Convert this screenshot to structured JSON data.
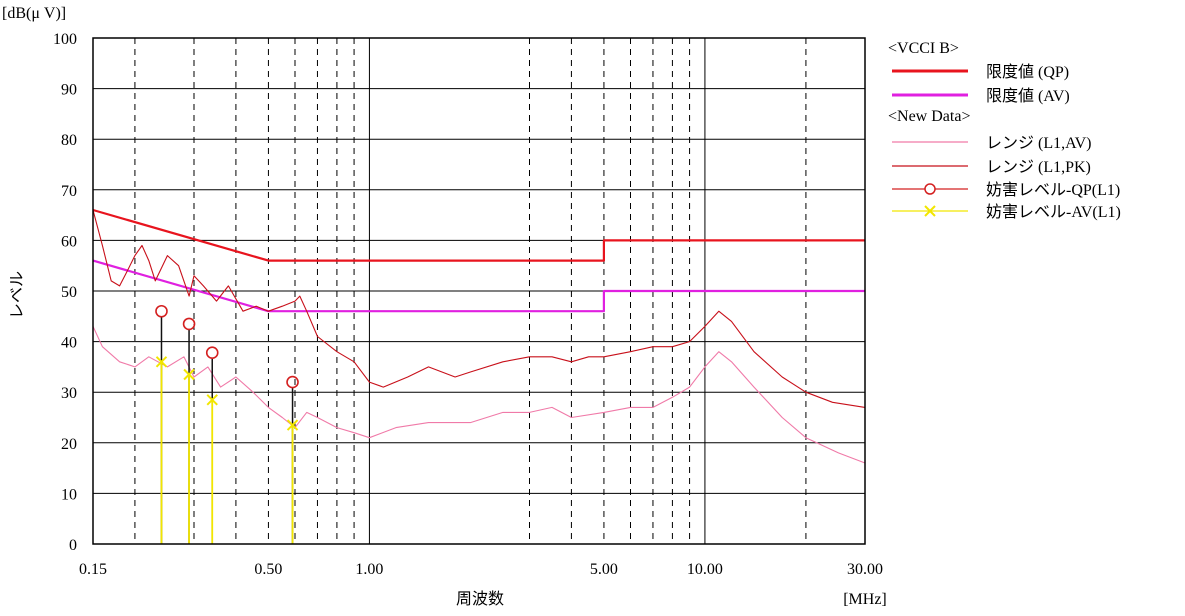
{
  "chart_data": {
    "type": "line",
    "x_scale": "log",
    "xlim": [
      0.15,
      30
    ],
    "ylim": [
      0,
      100
    ],
    "y_unit_label": "[dB(μ V)]",
    "x_unit_label": "[MHz]",
    "ylabel": "レベル",
    "xlabel": "周波数",
    "y_ticks": [
      0,
      10,
      20,
      30,
      40,
      50,
      60,
      70,
      80,
      90,
      100
    ],
    "x_tick_labels": [
      {
        "x": 0.15,
        "label": "0.15"
      },
      {
        "x": 0.5,
        "label": "0.50"
      },
      {
        "x": 1.0,
        "label": "1.00"
      },
      {
        "x": 5.0,
        "label": "5.00"
      },
      {
        "x": 10.0,
        "label": "10.00"
      },
      {
        "x": 30.0,
        "label": "30.00"
      }
    ],
    "x_grid_solid": [
      1,
      10
    ],
    "x_grid_dashed": [
      0.2,
      0.3,
      0.4,
      0.5,
      0.6,
      0.7,
      0.8,
      0.9,
      3,
      4,
      5,
      6,
      7,
      8,
      9,
      20
    ],
    "legend": {
      "group1_title": "<VCCI B>",
      "group2_title": "<New Data>"
    },
    "series": [
      {
        "name": "限度値 (QP)",
        "color": "#e8141e",
        "style": "limit",
        "x": [
          0.15,
          0.5,
          5.0,
          5.0,
          30.0
        ],
        "y": [
          66,
          56,
          56,
          60,
          60
        ]
      },
      {
        "name": "限度値 (AV)",
        "color": "#e020e0",
        "style": "limit",
        "x": [
          0.15,
          0.5,
          5.0,
          5.0,
          30.0
        ],
        "y": [
          56,
          46,
          46,
          50,
          50
        ]
      },
      {
        "name": "レンジ (L1,AV)",
        "color": "#f07aa8",
        "style": "trace",
        "x": [
          0.15,
          0.16,
          0.18,
          0.2,
          0.22,
          0.25,
          0.28,
          0.3,
          0.33,
          0.36,
          0.4,
          0.45,
          0.5,
          0.55,
          0.6,
          0.65,
          0.7,
          0.8,
          0.9,
          1.0,
          1.2,
          1.5,
          2.0,
          2.5,
          3.0,
          3.5,
          4.0,
          5.0,
          6.0,
          7.0,
          8.0,
          9.0,
          10.0,
          11.0,
          12.0,
          14.0,
          17.0,
          20.0,
          25.0,
          30.0
        ],
        "y": [
          43,
          39,
          36,
          35,
          37,
          35,
          37,
          33,
          35,
          31,
          33,
          30,
          27,
          25,
          23,
          26,
          25,
          23,
          22,
          21,
          23,
          24,
          24,
          26,
          26,
          27,
          25,
          26,
          27,
          27,
          29,
          31,
          35,
          38,
          36,
          31,
          25,
          21,
          18,
          16
        ]
      },
      {
        "name": "レンジ (L1,PK)",
        "color": "#c8101a",
        "style": "trace",
        "x": [
          0.15,
          0.16,
          0.17,
          0.18,
          0.19,
          0.2,
          0.21,
          0.22,
          0.23,
          0.25,
          0.27,
          0.29,
          0.3,
          0.32,
          0.35,
          0.38,
          0.42,
          0.46,
          0.5,
          0.55,
          0.6,
          0.62,
          0.65,
          0.7,
          0.8,
          0.9,
          1.0,
          1.1,
          1.3,
          1.5,
          1.8,
          2.0,
          2.5,
          3.0,
          3.5,
          4.0,
          4.5,
          5.0,
          6.0,
          7.0,
          8.0,
          9.0,
          10.0,
          11.0,
          12.0,
          14.0,
          17.0,
          20.0,
          24.0,
          30.0
        ],
        "y": [
          66,
          59,
          52,
          51,
          54,
          57,
          59,
          56,
          52,
          57,
          55,
          49,
          53,
          51,
          48,
          51,
          46,
          47,
          46,
          47,
          48,
          49,
          46,
          41,
          38,
          36,
          32,
          31,
          33,
          35,
          33,
          34,
          36,
          37,
          37,
          36,
          37,
          37,
          38,
          39,
          39,
          40,
          43,
          46,
          44,
          38,
          33,
          30,
          28,
          27
        ]
      },
      {
        "name": "妨害レベル-QP(L1)",
        "color": "#d42020",
        "style": "markers-o",
        "x": [
          0.24,
          0.29,
          0.34,
          0.59
        ],
        "y": [
          46,
          43.5,
          37.8,
          32
        ]
      },
      {
        "name": "妨害レベル-AV(L1)",
        "color": "#f2e600",
        "style": "markers-x",
        "x": [
          0.24,
          0.29,
          0.34,
          0.59
        ],
        "y": [
          36,
          33.5,
          28.5,
          23.5
        ]
      }
    ]
  }
}
